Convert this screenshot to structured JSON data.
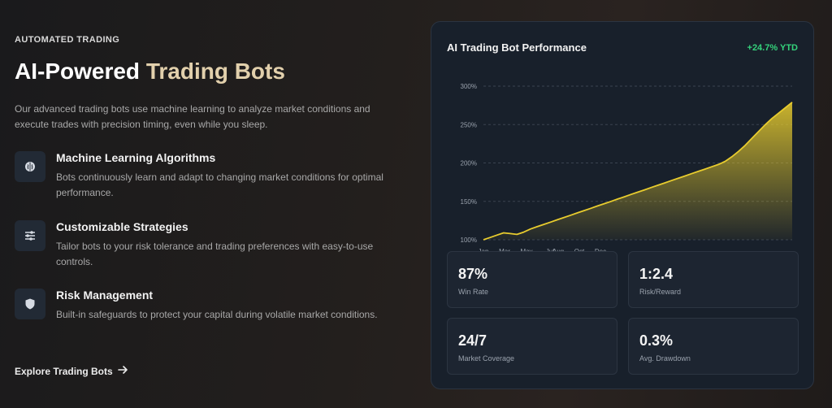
{
  "hero": {
    "eyebrow": "AUTOMATED TRADING",
    "title_main": "AI-Powered",
    "title_accent": "Trading Bots",
    "description": "Our advanced trading bots use machine learning to analyze market conditions and execute trades with precision timing, even while you sleep."
  },
  "features": [
    {
      "icon": "brain-icon",
      "title": "Machine Learning Algorithms",
      "description": "Bots continuously learn and adapt to changing market conditions for optimal performance."
    },
    {
      "icon": "sliders-icon",
      "title": "Customizable Strategies",
      "description": "Tailor bots to your risk tolerance and trading preferences with easy-to-use controls."
    },
    {
      "icon": "shield-icon",
      "title": "Risk Management",
      "description": "Built-in safeguards to protect your capital during volatile market conditions."
    }
  ],
  "cta": {
    "label": "Explore Trading Bots",
    "icon": "arrow-right-icon"
  },
  "colors": {
    "accent_gold": "#e2d0ac",
    "line_yellow": "#e8cc2e",
    "positive_green": "#34d27b",
    "card_bg": "#18202b"
  },
  "performance": {
    "title": "AI Trading Bot Performance",
    "ytd": "+24.7% YTD",
    "stats": [
      {
        "value": "87%",
        "label": "Win Rate"
      },
      {
        "value": "1:2.4",
        "label": "Risk/Reward"
      },
      {
        "value": "24/7",
        "label": "Market Coverage"
      },
      {
        "value": "0.3%",
        "label": "Avg. Drawdown"
      }
    ]
  },
  "chart_data": {
    "type": "area",
    "title": "",
    "xlabel": "",
    "ylabel": "",
    "x_ticks": [
      "Jan",
      "Mar",
      "May",
      "Jul",
      "Aug",
      "Oct",
      "Dec"
    ],
    "y_ticks": [
      "100%",
      "150%",
      "200%",
      "250%",
      "300%"
    ],
    "ylim": [
      100,
      300
    ],
    "grid": "horizontal-dashed",
    "legend": "none",
    "series": [
      {
        "values": [
          100,
          103,
          106,
          109,
          108,
          107,
          110,
          114,
          117,
          120,
          123,
          126,
          129,
          132,
          135,
          138,
          141,
          144,
          147,
          150,
          153,
          156,
          159,
          162,
          165,
          168,
          171,
          174,
          177,
          180,
          183,
          186,
          189,
          192,
          195,
          198,
          202,
          208,
          215,
          223,
          232,
          241,
          250,
          258,
          265,
          272,
          279
        ]
      }
    ]
  }
}
